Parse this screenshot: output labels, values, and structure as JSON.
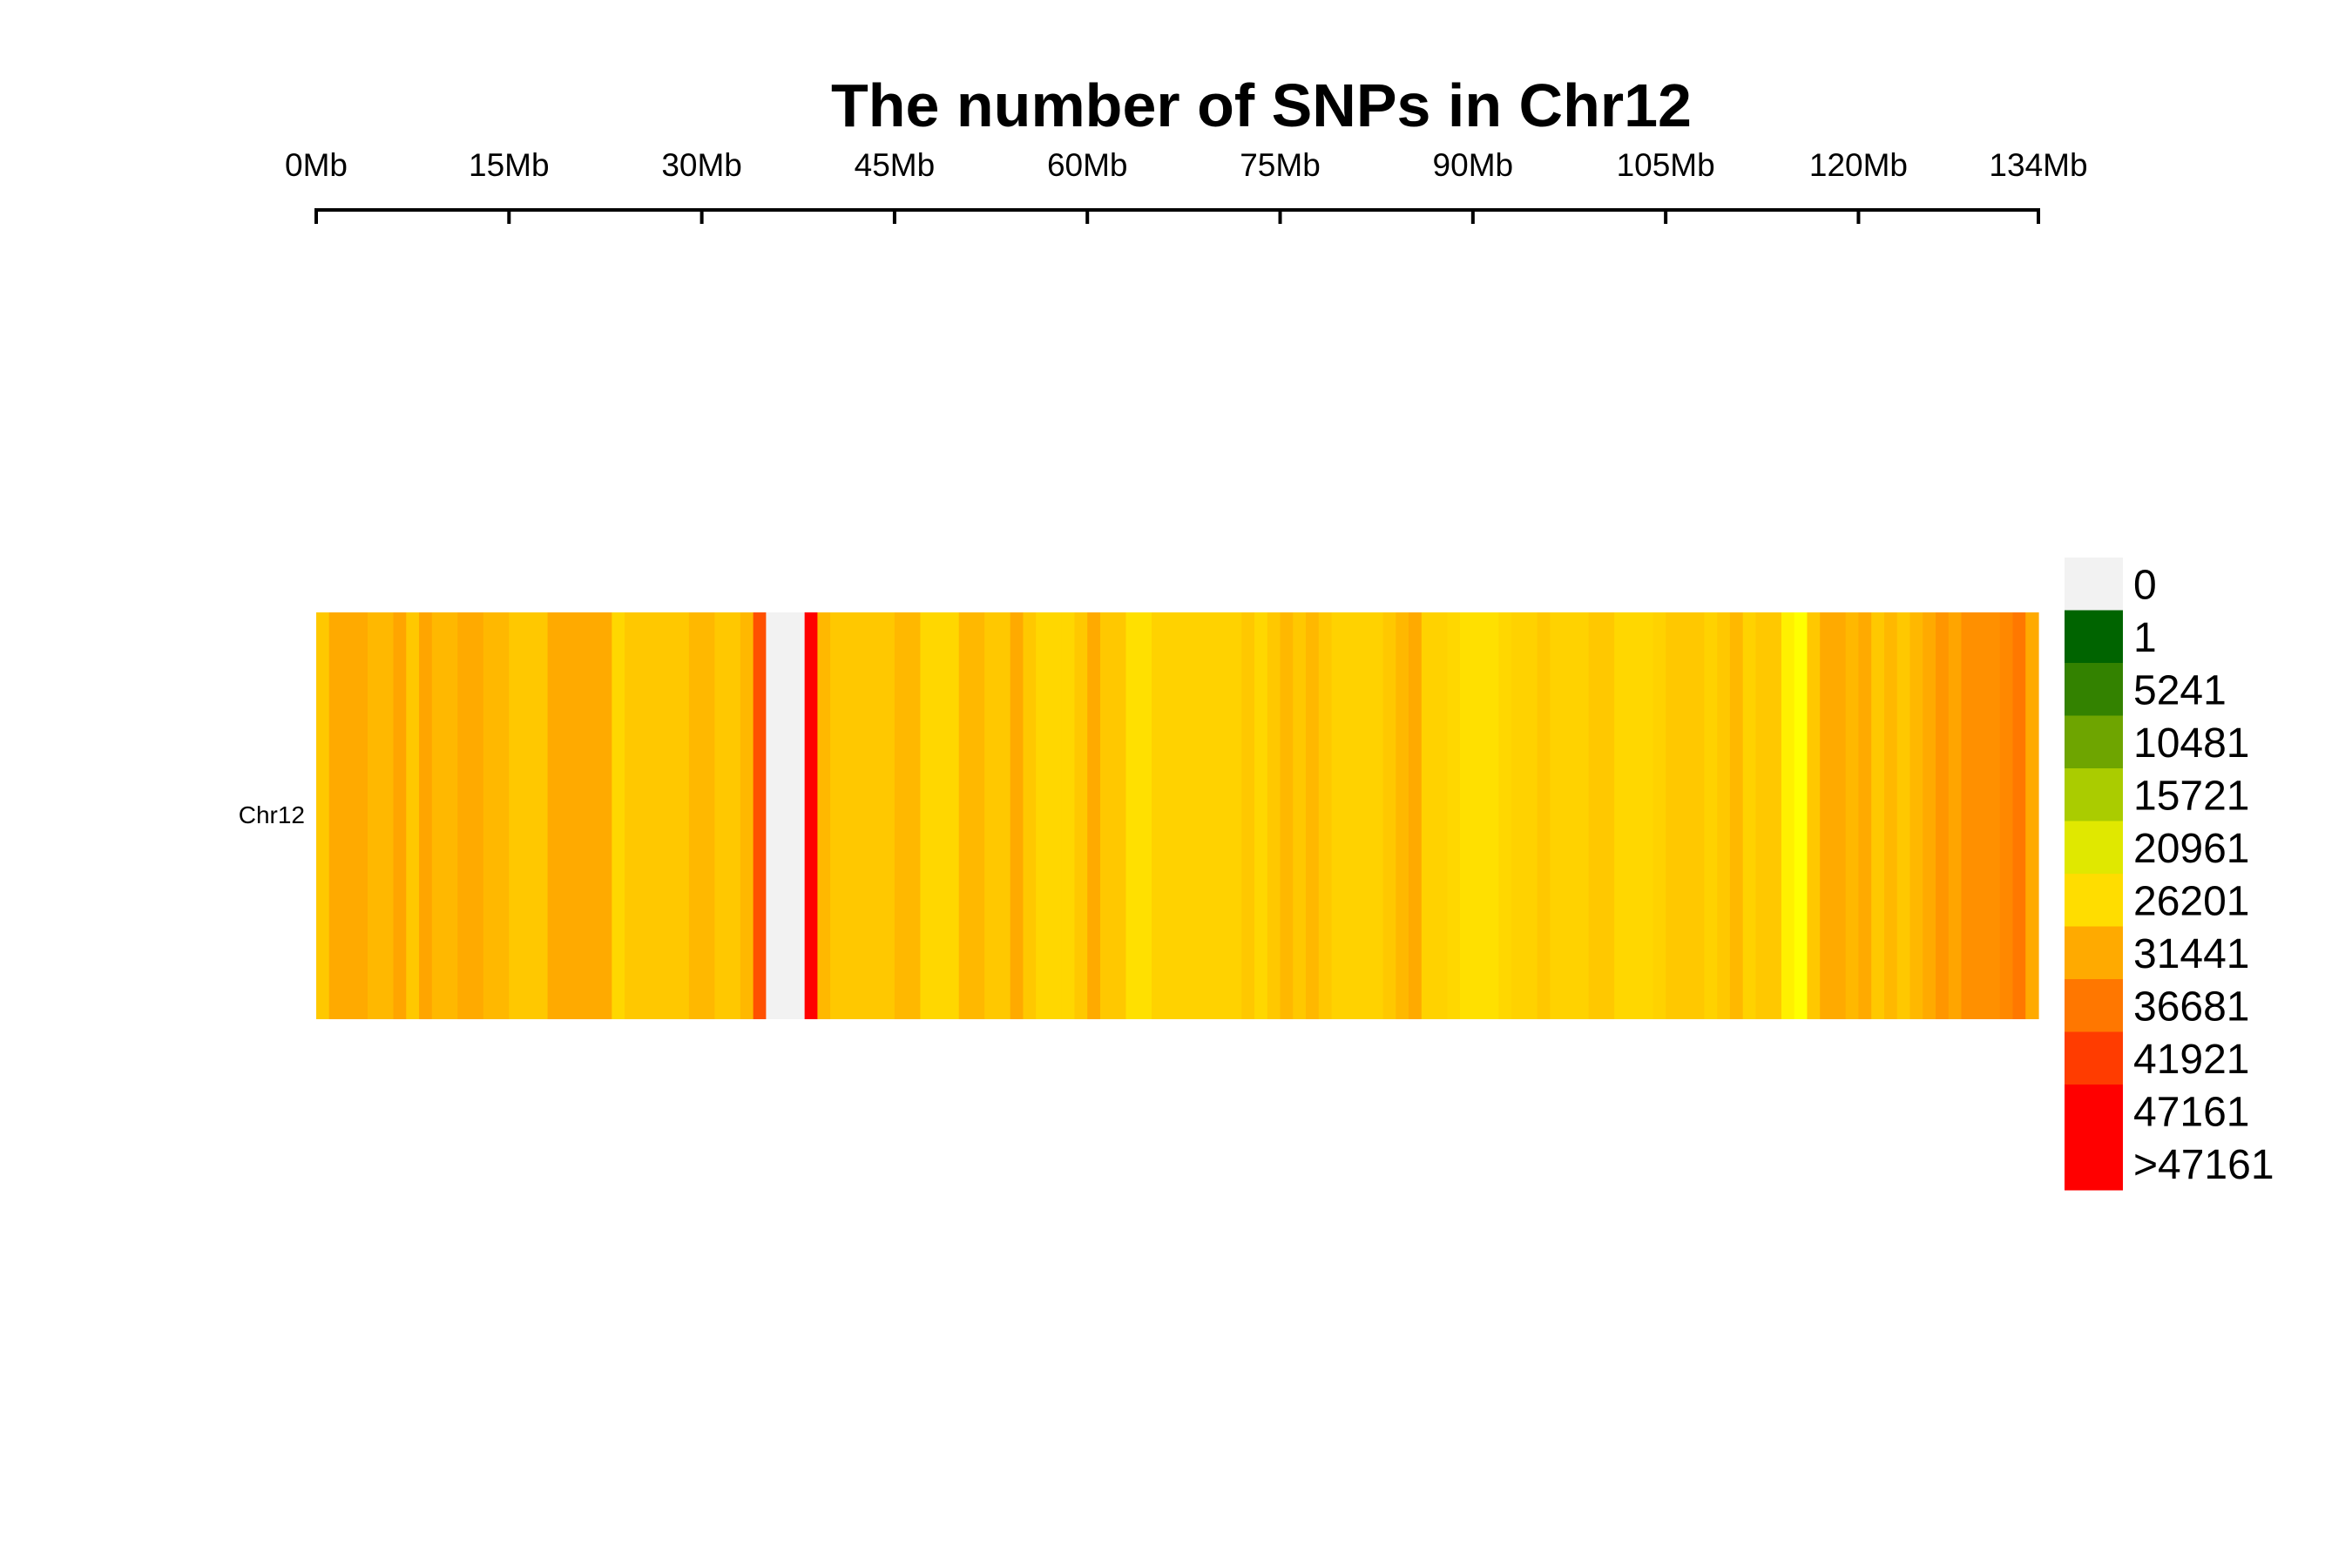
{
  "chart_data": {
    "type": "heatmap",
    "title": "The number of SNPs in Chr12",
    "chromosome": "Chr12",
    "chromosome_length_mb": 134,
    "x_ticks": [
      {
        "value": 0,
        "label": "0Mb"
      },
      {
        "value": 15,
        "label": "15Mb"
      },
      {
        "value": 30,
        "label": "30Mb"
      },
      {
        "value": 45,
        "label": "45Mb"
      },
      {
        "value": 60,
        "label": "60Mb"
      },
      {
        "value": 75,
        "label": "75Mb"
      },
      {
        "value": 90,
        "label": "90Mb"
      },
      {
        "value": 105,
        "label": "105Mb"
      },
      {
        "value": 120,
        "label": "120Mb"
      },
      {
        "value": 134,
        "label": "134Mb"
      }
    ],
    "bin_size_mb": 1,
    "bin_colors": [
      "#FFC800",
      "#FFAA00",
      "#FFAA00",
      "#FFAA00",
      "#FFB800",
      "#FFB800",
      "#FFA500",
      "#FFC800",
      "#FFA500",
      "#FFB800",
      "#FFB800",
      "#FFAA00",
      "#FFAA00",
      "#FFB800",
      "#FFB800",
      "#FFC800",
      "#FFC800",
      "#FFC800",
      "#FFAA00",
      "#FFAA00",
      "#FFAA00",
      "#FFAA00",
      "#FFAA00",
      "#FFD700",
      "#FFC800",
      "#FFC800",
      "#FFC800",
      "#FFC800",
      "#FFC800",
      "#FFB800",
      "#FFB800",
      "#FFC800",
      "#FFC800",
      "#FFB800",
      "#FF5000",
      "#F2F2F2",
      "#F2F2F2",
      "#F2F2F2",
      "#FF0000",
      "#FFB800",
      "#FFC800",
      "#FFC800",
      "#FFC800",
      "#FFC800",
      "#FFC800",
      "#FFB800",
      "#FFB800",
      "#FFD700",
      "#FFD700",
      "#FFD700",
      "#FFB800",
      "#FFB800",
      "#FFC800",
      "#FFC800",
      "#FFAA00",
      "#FFC800",
      "#FFD700",
      "#FFD700",
      "#FFD700",
      "#FFC800",
      "#FFAA00",
      "#FFC800",
      "#FFC800",
      "#FFE000",
      "#FFE000",
      "#FFD200",
      "#FFD200",
      "#FFD200",
      "#FFD200",
      "#FFD200",
      "#FFD200",
      "#FFD200",
      "#FFC800",
      "#FFD700",
      "#FFC800",
      "#FFB800",
      "#FFC800",
      "#FFB800",
      "#FFC800",
      "#FFD200",
      "#FFD200",
      "#FFD200",
      "#FFD200",
      "#FFC800",
      "#FFB800",
      "#FFAA00",
      "#FFD200",
      "#FFD200",
      "#FFD700",
      "#FFE000",
      "#FFE000",
      "#FFE000",
      "#FFD700",
      "#FFD200",
      "#FFD200",
      "#FFC800",
      "#FFD200",
      "#FFD200",
      "#FFD200",
      "#FFC800",
      "#FFC800",
      "#FFD700",
      "#FFD700",
      "#FFD700",
      "#FFD200",
      "#FFC800",
      "#FFC800",
      "#FFC800",
      "#FFD200",
      "#FFC800",
      "#FFB800",
      "#FFD200",
      "#FFC800",
      "#FFC800",
      "#FFF000",
      "#FFFF00",
      "#FFC800",
      "#FFAA00",
      "#FFAA00",
      "#FFB800",
      "#FFAA00",
      "#FFC800",
      "#FFB800",
      "#FFC800",
      "#FFB800",
      "#FFAA00",
      "#FF9600",
      "#FFA500",
      "#FF9000",
      "#FF9000",
      "#FF9000",
      "#FF8800",
      "#FF7800",
      "#FFAA00"
    ],
    "legend": [
      {
        "label": "0",
        "color": "#F2F2F2"
      },
      {
        "label": "1",
        "color": "#006400"
      },
      {
        "label": "5241",
        "color": "#338200"
      },
      {
        "label": "10481",
        "color": "#6EA500"
      },
      {
        "label": "15721",
        "color": "#AACC00"
      },
      {
        "label": "20961",
        "color": "#E0E800"
      },
      {
        "label": "26201",
        "color": "#FFDD00"
      },
      {
        "label": "31441",
        "color": "#FFAA00"
      },
      {
        "label": "36681",
        "color": "#FF7700"
      },
      {
        "label": "41921",
        "color": "#FF3C00"
      },
      {
        "label": "47161",
        "color": "#FF0000"
      },
      {
        "label": ">47161",
        "color": "#FF0000"
      }
    ]
  }
}
